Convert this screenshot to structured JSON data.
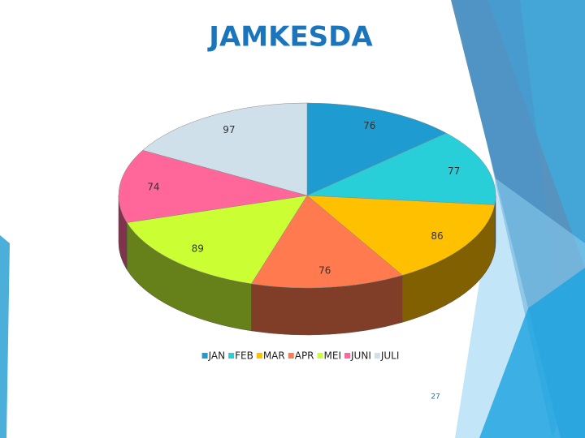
{
  "chart_data": {
    "type": "pie",
    "title": "JAMKESDA",
    "categories": [
      "JAN",
      "FEB",
      "MAR",
      "APR",
      "MEI",
      "JUNI",
      "JULI"
    ],
    "values": [
      76,
      77,
      86,
      76,
      89,
      74,
      97
    ],
    "colors": [
      "#1e9bd0",
      "#29cfd8",
      "#ffc000",
      "#ff7b4f",
      "#ccff33",
      "#ff6699",
      "#d0e0ea"
    ],
    "legend": "bottom"
  },
  "slide_number": "27"
}
